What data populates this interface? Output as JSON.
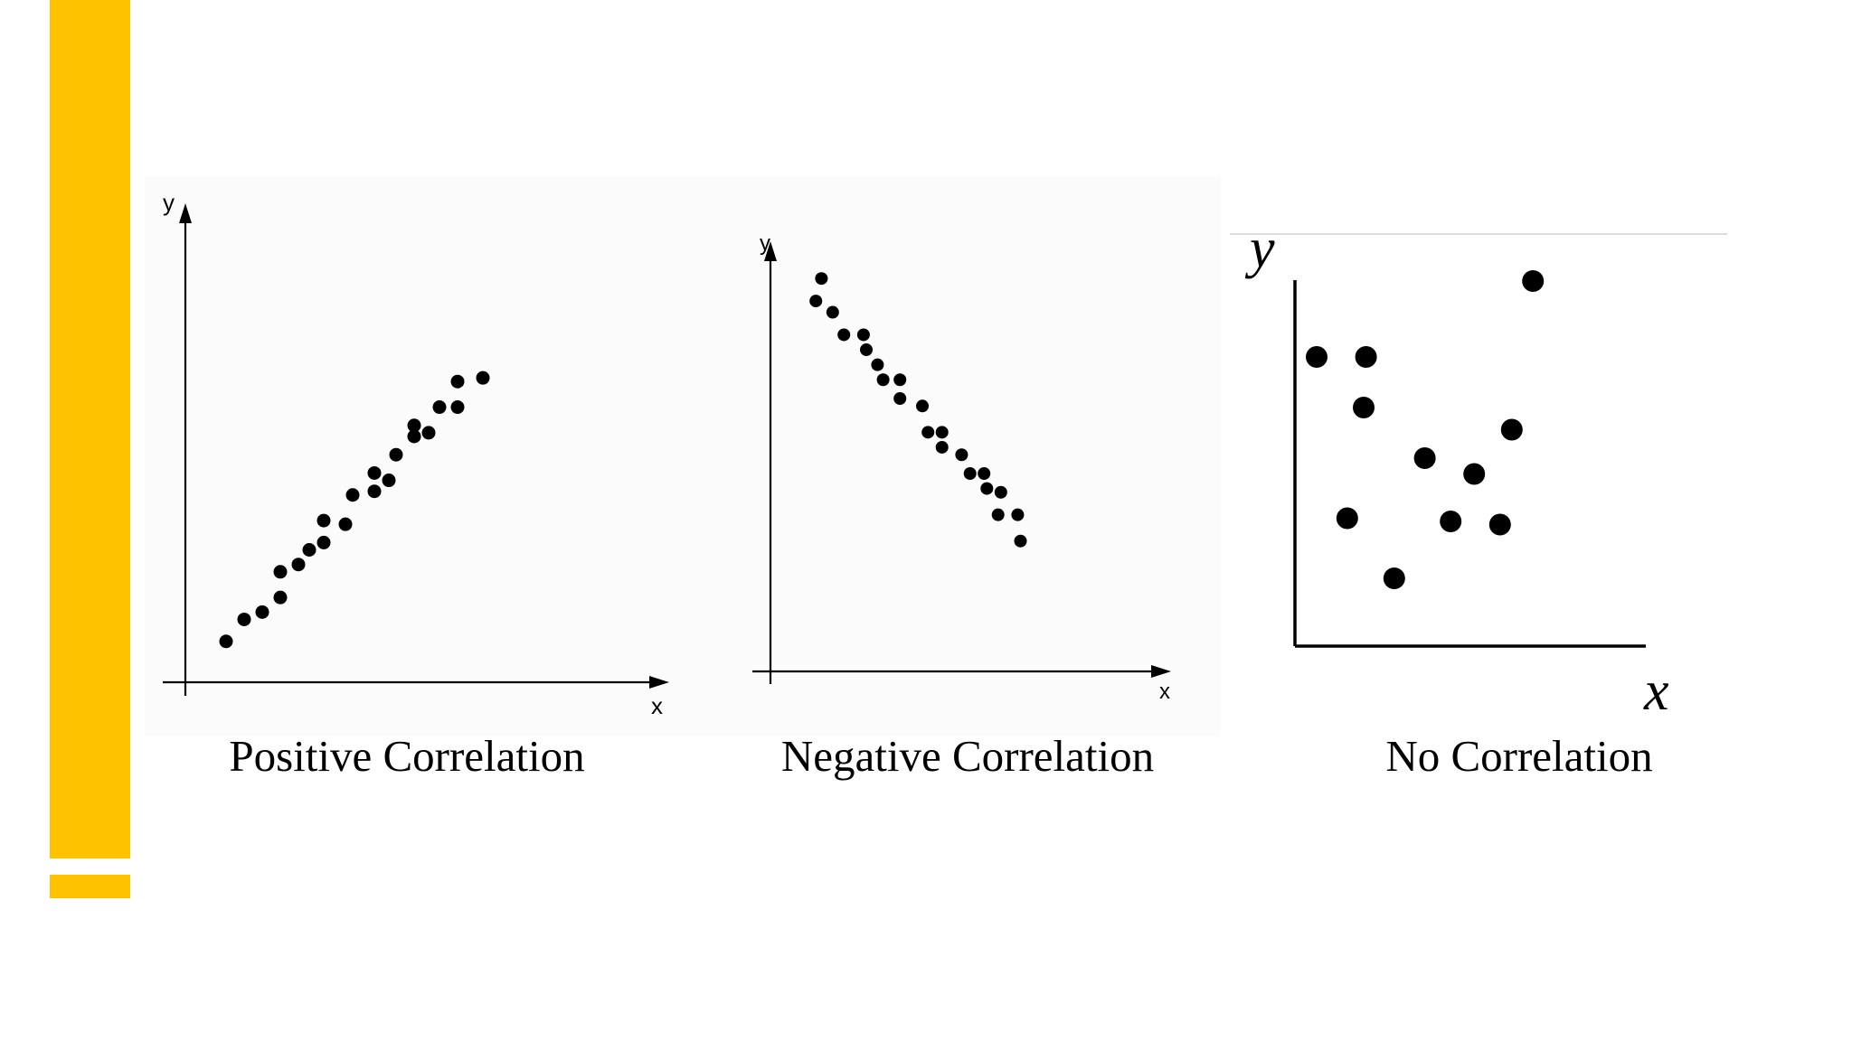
{
  "theme": {
    "accent": "#fec200"
  },
  "chart_data": [
    {
      "type": "scatter",
      "title": "Positive Correlation",
      "xlabel": "x",
      "ylabel": "y",
      "xlim": [
        0,
        100
      ],
      "ylim": [
        0,
        100
      ],
      "points": [
        [
          5,
          5
        ],
        [
          10,
          11
        ],
        [
          15,
          13
        ],
        [
          20,
          17
        ],
        [
          20,
          24
        ],
        [
          25,
          26
        ],
        [
          28,
          30
        ],
        [
          32,
          32
        ],
        [
          32,
          38
        ],
        [
          38,
          37
        ],
        [
          40,
          45
        ],
        [
          46,
          46
        ],
        [
          46,
          51
        ],
        [
          50,
          49
        ],
        [
          52,
          56
        ],
        [
          57,
          61
        ],
        [
          57,
          64
        ],
        [
          61,
          62
        ],
        [
          64,
          69
        ],
        [
          69,
          69
        ],
        [
          69,
          76
        ],
        [
          76,
          77
        ]
      ]
    },
    {
      "type": "scatter",
      "title": "Negative Correlation",
      "xlabel": "x",
      "ylabel": "y",
      "xlim": [
        0,
        100
      ],
      "ylim": [
        0,
        100
      ],
      "points": [
        [
          14,
          92
        ],
        [
          12,
          86
        ],
        [
          18,
          83
        ],
        [
          22,
          77
        ],
        [
          29,
          77
        ],
        [
          30,
          73
        ],
        [
          34,
          69
        ],
        [
          36,
          65
        ],
        [
          42,
          65
        ],
        [
          42,
          60
        ],
        [
          50,
          58
        ],
        [
          52,
          51
        ],
        [
          57,
          51
        ],
        [
          57,
          47
        ],
        [
          64,
          45
        ],
        [
          67,
          40
        ],
        [
          72,
          40
        ],
        [
          73,
          36
        ],
        [
          78,
          35
        ],
        [
          77,
          29
        ],
        [
          84,
          29
        ],
        [
          85,
          22
        ]
      ]
    },
    {
      "type": "scatter",
      "title": "No Correlation",
      "xlabel": "x",
      "ylabel": "y",
      "xlim": [
        0,
        100
      ],
      "ylim": [
        0,
        100
      ],
      "points": [
        [
          10,
          80
        ],
        [
          31,
          80
        ],
        [
          102,
          104
        ],
        [
          30,
          64
        ],
        [
          56,
          48
        ],
        [
          93,
          57
        ],
        [
          77,
          43
        ],
        [
          23,
          29
        ],
        [
          67,
          28
        ],
        [
          88,
          27
        ],
        [
          43,
          10
        ]
      ]
    }
  ]
}
